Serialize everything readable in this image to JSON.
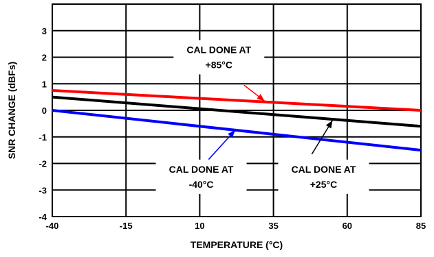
{
  "chart_data": {
    "type": "line",
    "title": "",
    "xlabel": "TEMPERATURE (°C)",
    "ylabel": "SNR CHANGE (dBFs)",
    "xlim": [
      -40,
      85
    ],
    "ylim": [
      -4,
      4
    ],
    "x_ticks": [
      -40,
      -15,
      10,
      35,
      60,
      85
    ],
    "y_ticks": [
      -4,
      -3,
      -2,
      -1,
      0,
      1,
      2,
      3
    ],
    "x_tick_labels": [
      "-40",
      "-15",
      "10",
      "35",
      "60",
      "85"
    ],
    "y_tick_labels": [
      "-4",
      "-3",
      "-2",
      "-1",
      "0",
      "1",
      "2",
      "3"
    ],
    "grid": true,
    "series": [
      {
        "x": [
          -40,
          85
        ],
        "values": [
          0.75,
          0.0
        ],
        "color": "#ff0000"
      },
      {
        "x": [
          -40,
          85
        ],
        "values": [
          0.5,
          -0.6
        ],
        "color": "#000000"
      },
      {
        "x": [
          -40,
          85
        ],
        "values": [
          0.0,
          -1.5
        ],
        "color": "#0000ff"
      }
    ],
    "annotations": [
      {
        "lines": [
          "CAL DONE AT",
          "+85°C"
        ],
        "color": "#ff0000",
        "text_x": 16.5,
        "text_y": 2.0,
        "arrow_from": [
          25,
          0.95
        ],
        "arrow_to": [
          32,
          0.35
        ]
      },
      {
        "lines": [
          "CAL DONE AT",
          "-40°C"
        ],
        "color": "#0000ff",
        "text_x": 10.5,
        "text_y": -2.5,
        "arrow_from": [
          13,
          -1.85
        ],
        "arrow_to": [
          22,
          -0.75
        ]
      },
      {
        "lines": [
          "CAL DONE AT",
          "+25°C"
        ],
        "color": "#000000",
        "text_x": 52,
        "text_y": -2.5,
        "arrow_from": [
          48,
          -1.65
        ],
        "arrow_to": [
          55,
          -0.38
        ]
      }
    ]
  }
}
